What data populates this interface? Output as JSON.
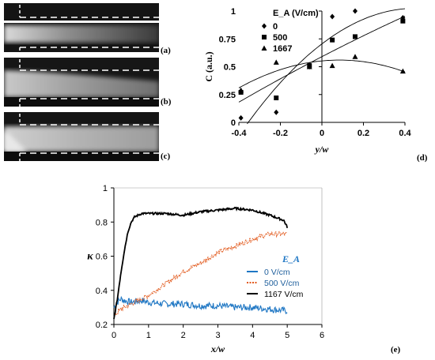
{
  "panels": {
    "a": {
      "label": "(a)"
    },
    "b": {
      "label": "(b)"
    },
    "c": {
      "label": "(c)"
    },
    "d": {
      "label": "(d)"
    },
    "e": {
      "label": "(e)"
    }
  },
  "chart_data": [
    {
      "panel": "d",
      "type": "scatter",
      "xlabel": "y/w",
      "ylabel": "C (a.u.)",
      "xlim": [
        -0.4,
        0.4
      ],
      "ylim": [
        0,
        1
      ],
      "xticks": [
        "-0.4",
        "-0.2",
        "0",
        "0.2",
        "0.4"
      ],
      "yticks": [
        "0",
        "0.25",
        "0.5",
        "0.75",
        "1"
      ],
      "legend_title": "E_A (V/cm)",
      "legend_placement": "top-left",
      "grid": false,
      "trendlines": true,
      "series": [
        {
          "name": "0",
          "marker": "diamond",
          "x": [
            -0.39,
            -0.22,
            -0.06,
            0.05,
            0.16,
            0.39
          ],
          "y": [
            0.04,
            0.09,
            0.5,
            0.95,
            1.0,
            0.94
          ]
        },
        {
          "name": "500",
          "marker": "square",
          "x": [
            -0.39,
            -0.22,
            -0.06,
            0.05,
            0.16,
            0.39
          ],
          "y": [
            0.27,
            0.22,
            0.51,
            0.74,
            0.77,
            0.91
          ]
        },
        {
          "name": "1667",
          "marker": "triangle",
          "x": [
            -0.39,
            -0.22,
            -0.06,
            0.05,
            0.16,
            0.39
          ],
          "y": [
            0.29,
            0.54,
            0.5,
            0.51,
            0.59,
            0.46
          ]
        }
      ]
    },
    {
      "panel": "e",
      "type": "line",
      "xlabel": "x/w",
      "ylabel": "κ",
      "xlim": [
        0,
        6
      ],
      "ylim": [
        0.2,
        1
      ],
      "xticks": [
        "0",
        "1",
        "2",
        "3",
        "4",
        "5",
        "6"
      ],
      "yticks": [
        "0.2",
        "0.4",
        "0.6",
        "0.8",
        "1"
      ],
      "legend_title": "E_A",
      "legend_placement": "center-right",
      "grid": false,
      "series": [
        {
          "name": "0 V/cm",
          "color": "#1f77c4",
          "style": "solid",
          "x": [
            0,
            0.1,
            0.2,
            0.3,
            0.5,
            0.8,
            1,
            1.5,
            2,
            2.5,
            3,
            3.5,
            4,
            4.5,
            5
          ],
          "y": [
            0.3,
            0.33,
            0.35,
            0.34,
            0.33,
            0.34,
            0.33,
            0.32,
            0.32,
            0.31,
            0.31,
            0.3,
            0.3,
            0.29,
            0.28
          ]
        },
        {
          "name": "500 V/cm",
          "color": "#e2591c",
          "style": "dotted",
          "x": [
            0,
            0.2,
            0.5,
            1,
            1.5,
            2,
            2.5,
            3,
            3.5,
            4,
            4.5,
            5
          ],
          "y": [
            0.25,
            0.29,
            0.32,
            0.37,
            0.44,
            0.51,
            0.56,
            0.62,
            0.66,
            0.7,
            0.73,
            0.73
          ]
        },
        {
          "name": "1167 V/cm",
          "color": "#000000",
          "style": "solid",
          "x": [
            0,
            0.1,
            0.2,
            0.3,
            0.4,
            0.5,
            0.6,
            0.7,
            0.8,
            1,
            1.5,
            2,
            2.5,
            3,
            3.5,
            4,
            4.5,
            4.9,
            5
          ],
          "y": [
            0.23,
            0.35,
            0.5,
            0.63,
            0.74,
            0.8,
            0.83,
            0.84,
            0.85,
            0.85,
            0.85,
            0.84,
            0.86,
            0.87,
            0.88,
            0.87,
            0.84,
            0.81,
            0.77
          ]
        }
      ]
    }
  ]
}
